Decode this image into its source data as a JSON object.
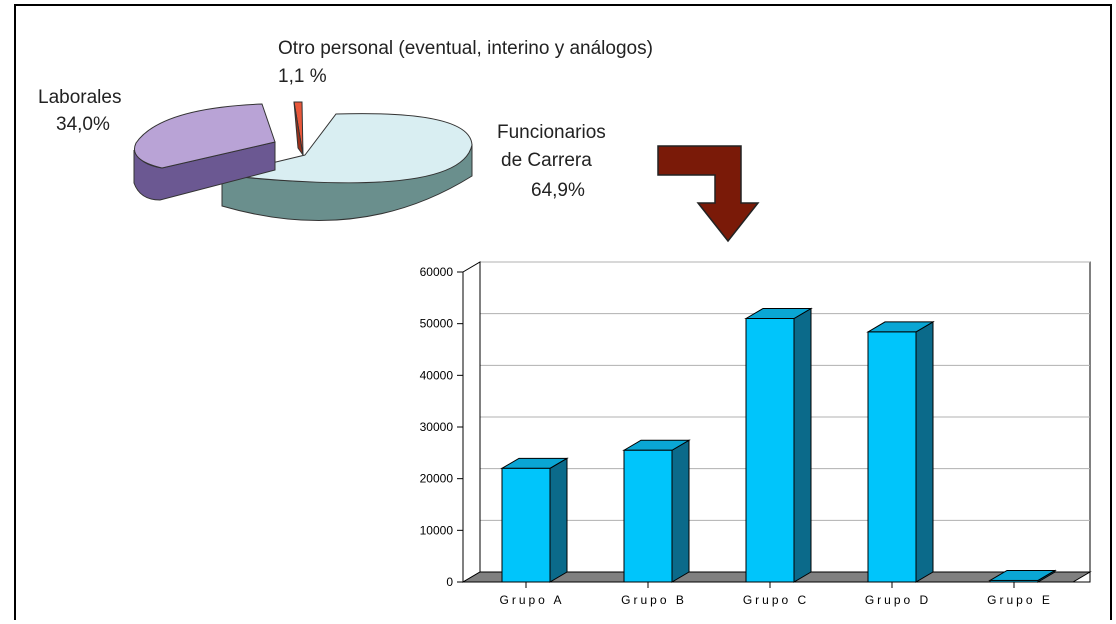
{
  "chart_data": [
    {
      "type": "pie",
      "style": "3d-exploded",
      "slices": [
        {
          "name": "Funcionarios de Carrera",
          "value": 64.9,
          "label_lines": [
            "Funcionarios",
            "de Carrera",
            "64,9%"
          ],
          "color_top": "#d9eef2",
          "color_side": "#6a8f8d"
        },
        {
          "name": "Laborales",
          "value": 34.0,
          "label_lines": [
            "Laborales",
            "34,0%"
          ],
          "color_top": "#b9a3d6",
          "color_side": "#6b5892"
        },
        {
          "name": "Otro personal (eventual, interino y análogos)",
          "value": 1.1,
          "label_lines": [
            "Otro personal (eventual, interino y análogos)",
            "1,1 %"
          ],
          "color_top": "#e8573a",
          "color_side": "#9b2f1a"
        }
      ]
    },
    {
      "type": "bar",
      "style": "3d",
      "categories": [
        "Grupo A",
        "Grupo B",
        "Grupo C",
        "Grupo D",
        "Grupo E"
      ],
      "values": [
        22000,
        25500,
        51000,
        48400,
        300
      ],
      "ylim": [
        0,
        60000
      ],
      "yticks": [
        "60000",
        "50000",
        "40000",
        "30000",
        "20000",
        "10000",
        "0"
      ],
      "grid": true,
      "bar_color": "#00c5fb",
      "bar_side_color": "#0b6a8a",
      "floor_color": "#808080"
    }
  ],
  "colors": {
    "arrow": "#7a1a08"
  }
}
